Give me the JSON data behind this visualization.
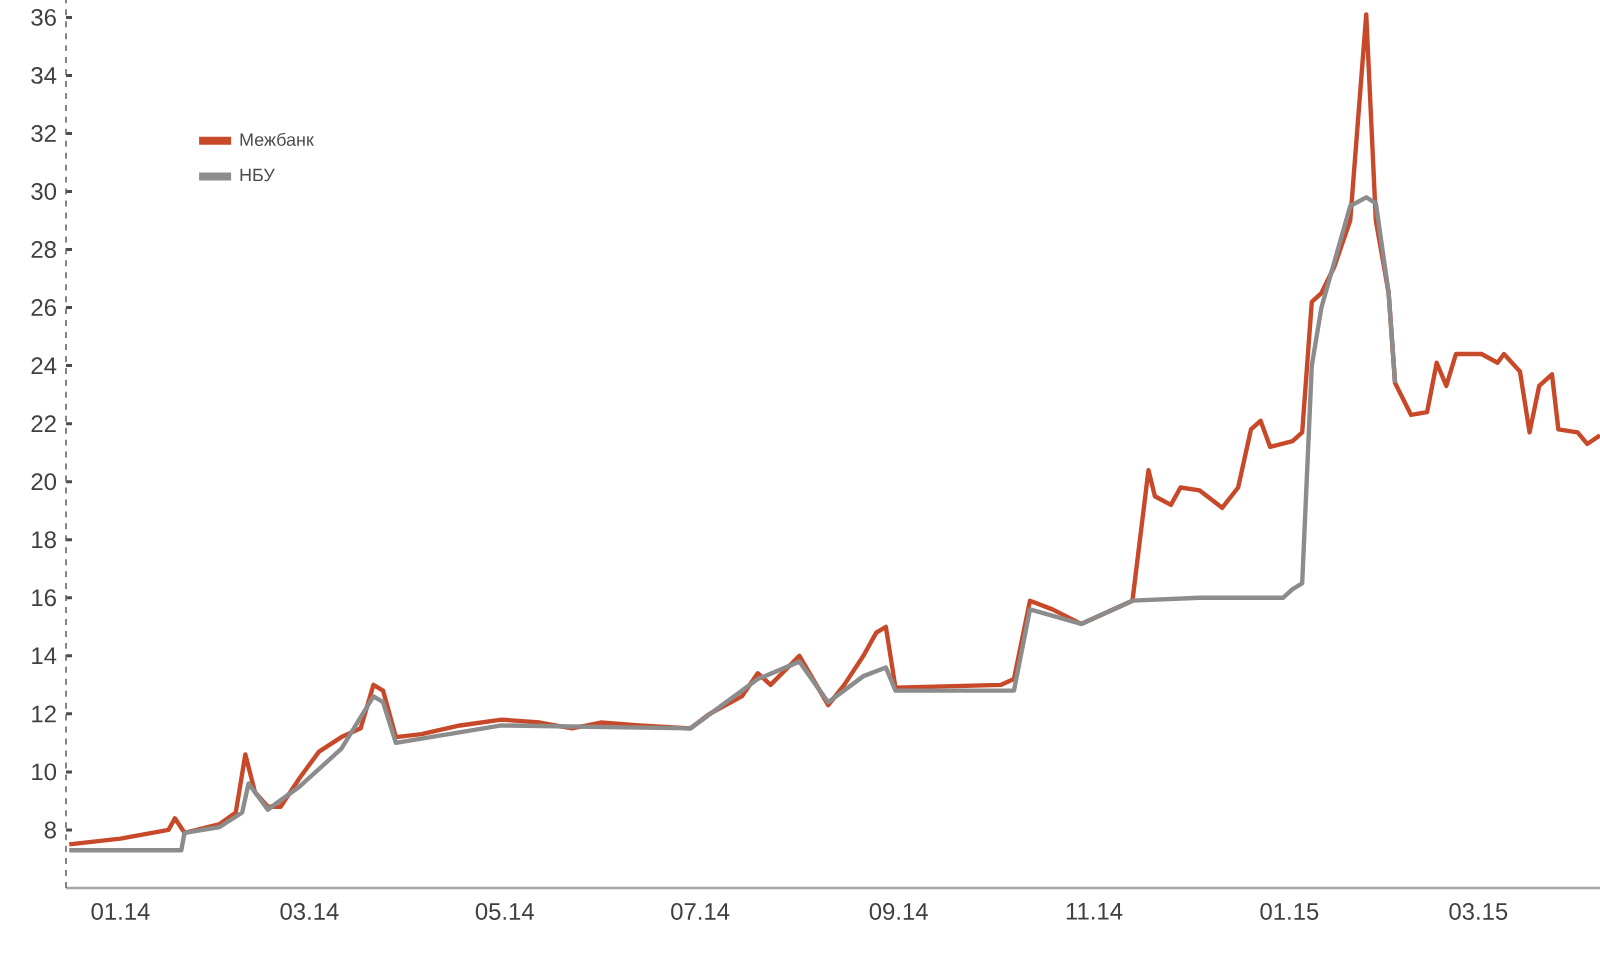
{
  "chart_data": {
    "type": "line",
    "x": [
      "2013-12-16",
      "2014-01-01",
      "2014-01-16",
      "2014-01-18",
      "2014-01-21",
      "2014-02-01",
      "2014-02-06",
      "2014-02-09",
      "2014-02-12",
      "2014-02-16",
      "2014-02-20",
      "2014-02-26",
      "2014-03-04",
      "2014-03-11",
      "2014-03-17",
      "2014-03-21",
      "2014-03-24",
      "2014-03-28",
      "2014-04-05",
      "2014-04-17",
      "2014-04-30",
      "2014-05-12",
      "2014-05-22",
      "2014-05-31",
      "2014-06-12",
      "2014-06-28",
      "2014-07-04",
      "2014-07-14",
      "2014-07-19",
      "2014-07-23",
      "2014-08-01",
      "2014-08-10",
      "2014-08-15",
      "2014-08-21",
      "2014-08-25",
      "2014-08-28",
      "2014-08-31",
      "2014-10-03",
      "2014-10-07",
      "2014-10-12",
      "2014-10-19",
      "2014-10-28",
      "2014-11-03",
      "2014-11-13",
      "2014-11-18",
      "2014-11-20",
      "2014-11-25",
      "2014-11-28",
      "2014-12-04",
      "2014-12-11",
      "2014-12-16",
      "2014-12-20",
      "2014-12-23",
      "2014-12-26",
      "2015-01-02",
      "2015-01-05",
      "2015-01-08",
      "2015-01-11",
      "2015-01-15",
      "2015-01-20",
      "2015-01-25",
      "2015-01-28",
      "2015-02-01",
      "2015-02-03",
      "2015-02-08",
      "2015-02-13",
      "2015-02-16",
      "2015-02-19",
      "2015-02-22",
      "2015-03-02",
      "2015-03-07",
      "2015-03-09",
      "2015-03-14",
      "2015-03-17",
      "2015-03-20",
      "2015-03-24",
      "2015-03-26",
      "2015-04-01",
      "2015-04-04",
      "2015-04-08"
    ],
    "series": [
      {
        "name": "Межбанк",
        "color": "#c8492a",
        "values": [
          7.5,
          7.7,
          8.0,
          8.4,
          7.9,
          8.2,
          8.6,
          10.6,
          9.3,
          8.8,
          8.8,
          9.8,
          10.7,
          11.2,
          11.5,
          13.0,
          12.8,
          11.2,
          11.3,
          11.6,
          11.8,
          11.7,
          11.5,
          11.7,
          11.6,
          11.5,
          12.0,
          12.6,
          13.4,
          13.0,
          14.0,
          12.3,
          13.0,
          14.0,
          14.8,
          15.0,
          12.9,
          13.0,
          13.2,
          15.9,
          15.6,
          15.1,
          15.4,
          15.9,
          20.4,
          19.5,
          19.2,
          19.8,
          19.7,
          19.1,
          19.8,
          21.8,
          22.1,
          21.2,
          21.4,
          21.7,
          26.2,
          26.5,
          27.4,
          29.0,
          36.1,
          29.0,
          26.5,
          23.4,
          22.3,
          22.4,
          24.1,
          23.3,
          24.4,
          24.4,
          24.1,
          24.4,
          23.8,
          21.7,
          23.3,
          23.7,
          21.8,
          21.7,
          21.3,
          21.6
        ]
      },
      {
        "name": "НБУ",
        "color": "#8c8c8c",
        "x": [
          "2013-12-16",
          "2014-01-20",
          "2014-01-21",
          "2014-02-01",
          "2014-02-08",
          "2014-02-10",
          "2014-02-16",
          "2014-02-26",
          "2014-03-11",
          "2014-03-21",
          "2014-03-24",
          "2014-03-28",
          "2014-04-30",
          "2014-06-28",
          "2014-07-19",
          "2014-08-01",
          "2014-08-10",
          "2014-08-21",
          "2014-08-28",
          "2014-08-31",
          "2014-10-07",
          "2014-10-12",
          "2014-10-28",
          "2014-11-13",
          "2014-12-04",
          "2014-12-30",
          "2015-01-02",
          "2015-01-05",
          "2015-01-08",
          "2015-01-11",
          "2015-01-20",
          "2015-01-25",
          "2015-01-28",
          "2015-02-01",
          "2015-02-03"
        ],
        "values": [
          7.3,
          7.3,
          7.9,
          8.1,
          8.6,
          9.6,
          8.7,
          9.5,
          10.8,
          12.6,
          12.4,
          11.0,
          11.6,
          11.5,
          13.2,
          13.8,
          12.4,
          13.3,
          13.6,
          12.8,
          12.8,
          15.6,
          15.1,
          15.9,
          16.0,
          16.0,
          16.3,
          16.5,
          24.0,
          26.0,
          29.5,
          29.8,
          29.6,
          26.5,
          23.4
        ]
      }
    ],
    "xlim": [
      "2013-12-15",
      "2015-04-08"
    ],
    "xticks": [
      {
        "value": "2014-01-01",
        "label": "01.14"
      },
      {
        "value": "2014-03-01",
        "label": "03.14"
      },
      {
        "value": "2014-05-01",
        "label": "05.14"
      },
      {
        "value": "2014-07-01",
        "label": "07.14"
      },
      {
        "value": "2014-09-01",
        "label": "09.14"
      },
      {
        "value": "2014-11-01",
        "label": "11.14"
      },
      {
        "value": "2015-01-01",
        "label": "01.15"
      },
      {
        "value": "2015-03-01",
        "label": "03.15"
      }
    ],
    "ylim": [
      6,
      36.6
    ],
    "yticks": [
      8,
      10,
      12,
      14,
      16,
      18,
      20,
      22,
      24,
      26,
      28,
      30,
      32,
      34,
      36
    ],
    "legend": "top left",
    "grid": false,
    "marker": "none",
    "line_style": "solid"
  }
}
